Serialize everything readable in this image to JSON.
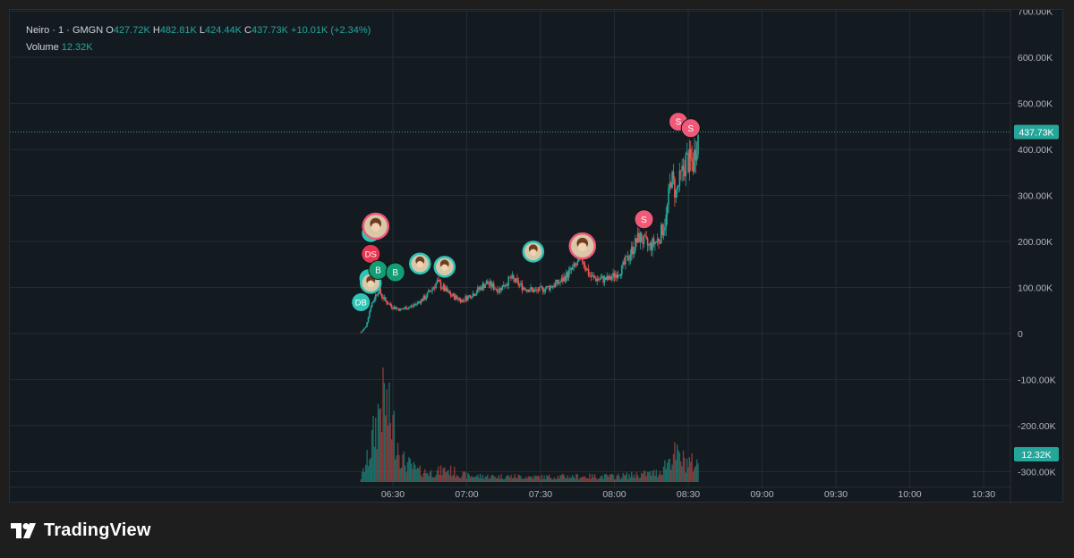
{
  "legend": {
    "symbol": "Neiro · 1 · GMGN",
    "open_label": "O",
    "open": "427.72K",
    "high_label": "H",
    "high": "482.81K",
    "low_label": "L",
    "low": "424.44K",
    "close_label": "C",
    "close": "437.73K",
    "change": "+10.01K (+2.34%)",
    "volume_label": "Volume",
    "volume": "12.32K"
  },
  "brand": {
    "name": "TradingView"
  },
  "colors": {
    "up": "#26a69a",
    "down": "#ef5350",
    "buy_marker": "#2ec4b6",
    "sell_marker": "#f05a78",
    "grid": "#242b33",
    "axis_text": "#b2b5be"
  },
  "chart_data": {
    "type": "candlestick",
    "title": "",
    "xlabel": "",
    "ylabel": "",
    "x_ticks": [
      "06:30",
      "07:00",
      "07:30",
      "08:00",
      "08:30",
      "09:00",
      "09:30",
      "10:00",
      "10:30"
    ],
    "y_ticks": [
      "700.00K",
      "600.00K",
      "500.00K",
      "400.00K",
      "300.00K",
      "200.00K",
      "100.00K",
      "0",
      "-100.00K",
      "-200.00K",
      "-300.00K"
    ],
    "ylim": [
      -300000,
      700000
    ],
    "last_price": 437730,
    "last_price_label": "437.73K",
    "last_volume_label": "12.32K",
    "grid": true,
    "price_path": [
      [
        "06:17",
        3000
      ],
      [
        "06:19",
        15000
      ],
      [
        "06:21",
        60000
      ],
      [
        "06:24",
        95000
      ],
      [
        "06:27",
        70000
      ],
      [
        "06:30",
        58000
      ],
      [
        "06:33",
        52000
      ],
      [
        "06:38",
        60000
      ],
      [
        "06:43",
        78000
      ],
      [
        "06:48",
        112000
      ],
      [
        "06:53",
        85000
      ],
      [
        "06:58",
        72000
      ],
      [
        "07:03",
        88000
      ],
      [
        "07:08",
        110000
      ],
      [
        "07:13",
        95000
      ],
      [
        "07:18",
        120000
      ],
      [
        "07:23",
        100000
      ],
      [
        "07:28",
        92000
      ],
      [
        "07:33",
        100000
      ],
      [
        "07:38",
        112000
      ],
      [
        "07:43",
        140000
      ],
      [
        "07:47",
        162000
      ],
      [
        "07:50",
        125000
      ],
      [
        "07:53",
        118000
      ],
      [
        "07:58",
        118000
      ],
      [
        "08:03",
        140000
      ],
      [
        "08:07",
        180000
      ],
      [
        "08:10",
        210000
      ],
      [
        "08:14",
        188000
      ],
      [
        "08:18",
        205000
      ],
      [
        "08:21",
        250000
      ],
      [
        "08:23",
        340000
      ],
      [
        "08:25",
        305000
      ],
      [
        "08:27",
        338000
      ],
      [
        "08:29",
        375000
      ],
      [
        "08:32",
        370000
      ],
      [
        "08:34",
        437730
      ]
    ],
    "volume_path": [
      [
        "06:17",
        6
      ],
      [
        "06:20",
        40
      ],
      [
        "06:23",
        90
      ],
      [
        "06:26",
        150
      ],
      [
        "06:28",
        110
      ],
      [
        "06:31",
        80
      ],
      [
        "06:34",
        35
      ],
      [
        "06:40",
        18
      ],
      [
        "06:46",
        15
      ],
      [
        "06:52",
        20
      ],
      [
        "07:00",
        10
      ],
      [
        "07:10",
        9
      ],
      [
        "07:20",
        9
      ],
      [
        "07:30",
        8
      ],
      [
        "07:40",
        9
      ],
      [
        "07:50",
        9
      ],
      [
        "08:00",
        9
      ],
      [
        "08:10",
        12
      ],
      [
        "08:18",
        15
      ],
      [
        "08:24",
        45
      ],
      [
        "08:28",
        35
      ],
      [
        "08:32",
        30
      ],
      [
        "08:34",
        28
      ]
    ],
    "volume_ylim": [
      0,
      150
    ],
    "markers": [
      {
        "time": "06:17",
        "price": 68000,
        "kind": "buy",
        "label": "DB"
      },
      {
        "time": "06:20",
        "price": 120000,
        "kind": "buy",
        "label": ""
      },
      {
        "time": "06:21",
        "price": 110000,
        "kind": "avatar-buy",
        "label": ""
      },
      {
        "time": "06:21",
        "price": 173000,
        "kind": "sell",
        "label": "DS"
      },
      {
        "time": "06:21",
        "price": 218000,
        "kind": "buy",
        "label": ""
      },
      {
        "time": "06:23",
        "price": 233000,
        "kind": "avatar-sell",
        "label": ""
      },
      {
        "time": "06:24",
        "price": 138000,
        "kind": "buy",
        "label": "B"
      },
      {
        "time": "06:31",
        "price": 133000,
        "kind": "buy",
        "label": "B"
      },
      {
        "time": "06:41",
        "price": 152000,
        "kind": "avatar-buy",
        "label": ""
      },
      {
        "time": "06:51",
        "price": 145000,
        "kind": "avatar-buy",
        "label": ""
      },
      {
        "time": "07:27",
        "price": 178000,
        "kind": "avatar-buy",
        "label": ""
      },
      {
        "time": "07:47",
        "price": 190000,
        "kind": "avatar-sell",
        "label": ""
      },
      {
        "time": "08:12",
        "price": 248000,
        "kind": "sell",
        "label": "S"
      },
      {
        "time": "08:26",
        "price": 460000,
        "kind": "sell",
        "label": "S"
      },
      {
        "time": "08:31",
        "price": 446000,
        "kind": "sell",
        "label": "S"
      }
    ]
  }
}
